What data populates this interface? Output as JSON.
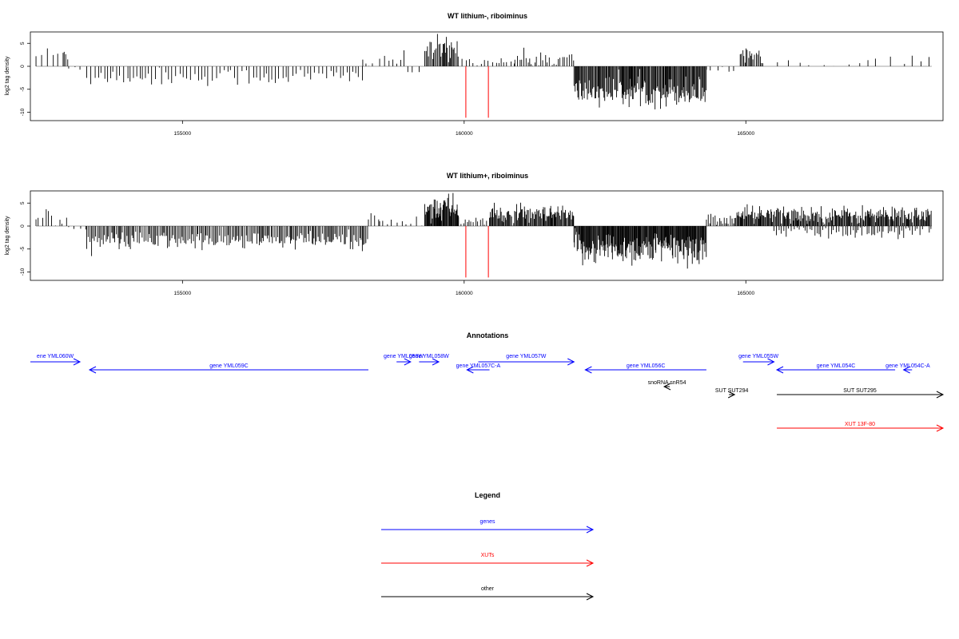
{
  "colors": {
    "gene": "#0000ff",
    "xut": "#ff0000",
    "other": "#000000",
    "axis": "#000000",
    "baseline": "#888888"
  },
  "chart_data": [
    {
      "type": "bar",
      "title": "WT lithium-, riboiminus",
      "ylabel": "log2 tag density",
      "xlim": [
        152300,
        168500
      ],
      "ylim": [
        -12,
        8
      ],
      "x_ticks": [
        155000,
        160000,
        165000
      ],
      "y_ticks": [
        5,
        0,
        -5,
        -10
      ],
      "markers": [
        160030,
        160430
      ],
      "segments": [
        {
          "from": 152400,
          "to": 152900,
          "mean": 2.5,
          "sd": 1.0,
          "step": 90,
          "sign": 1
        },
        {
          "from": 152900,
          "to": 152980,
          "mean": 2.8,
          "sd": 1.2,
          "step": 40,
          "sign": 1
        },
        {
          "from": 152980,
          "to": 153300,
          "mean": -0.3,
          "sd": 0.4,
          "step": 120,
          "sign": -1
        },
        {
          "from": 153300,
          "to": 158200,
          "mean": -2.3,
          "sd": 1.0,
          "step": 60,
          "sign": -1
        },
        {
          "from": 158200,
          "to": 158400,
          "mean": 1.0,
          "sd": 0.6,
          "step": 60,
          "sign": 1
        },
        {
          "from": 158500,
          "to": 158980,
          "mean": 1.6,
          "sd": 1.2,
          "step": 70,
          "sign": 1
        },
        {
          "from": 159000,
          "to": 159300,
          "mean": -0.8,
          "sd": 0.8,
          "step": 90,
          "sign": -1
        },
        {
          "from": 159300,
          "to": 159900,
          "mean": 3.5,
          "sd": 1.5,
          "step": 20,
          "sign": 1
        },
        {
          "from": 159900,
          "to": 160900,
          "mean": 0.8,
          "sd": 1.0,
          "step": 60,
          "sign": 1
        },
        {
          "from": 160900,
          "to": 161950,
          "mean": 1.5,
          "sd": 1.0,
          "step": 40,
          "sign": 1
        },
        {
          "from": 161950,
          "to": 164300,
          "mean": -5.5,
          "sd": 1.6,
          "step": 15,
          "sign": -1
        },
        {
          "from": 164300,
          "to": 164900,
          "mean": -0.6,
          "sd": 0.8,
          "step": 110,
          "sign": -1
        },
        {
          "from": 164900,
          "to": 165300,
          "mean": 2.6,
          "sd": 1.0,
          "step": 25,
          "sign": 1
        },
        {
          "from": 165300,
          "to": 168300,
          "mean": 0.9,
          "sd": 0.9,
          "step": 200,
          "sign": 1
        }
      ]
    },
    {
      "type": "bar",
      "title": "WT lithium+, riboiminus",
      "ylabel": "log2 tag density",
      "xlim": [
        152300,
        168500
      ],
      "ylim": [
        -12,
        8
      ],
      "x_ticks": [
        155000,
        160000,
        165000
      ],
      "y_ticks": [
        5,
        0,
        -5,
        -10
      ],
      "markers": [
        160030,
        160430
      ],
      "segments": [
        {
          "from": 152400,
          "to": 152980,
          "mean": 1.8,
          "sd": 0.9,
          "step": 60,
          "sign": 1
        },
        {
          "from": 152980,
          "to": 153300,
          "mean": -0.5,
          "sd": 0.5,
          "step": 90,
          "sign": -1
        },
        {
          "from": 153300,
          "to": 158300,
          "mean": -3.2,
          "sd": 1.0,
          "step": 25,
          "sign": -1
        },
        {
          "from": 158300,
          "to": 158500,
          "mean": 1.5,
          "sd": 1.0,
          "step": 60,
          "sign": 1
        },
        {
          "from": 158500,
          "to": 159300,
          "mean": 0.6,
          "sd": 0.8,
          "step": 80,
          "sign": 1
        },
        {
          "from": 159300,
          "to": 159900,
          "mean": 4.0,
          "sd": 1.6,
          "step": 12,
          "sign": 1
        },
        {
          "from": 159900,
          "to": 160450,
          "mean": 1.0,
          "sd": 0.9,
          "step": 40,
          "sign": 1
        },
        {
          "from": 160450,
          "to": 161950,
          "mean": 2.4,
          "sd": 1.0,
          "step": 15,
          "sign": 1
        },
        {
          "from": 161950,
          "to": 164300,
          "mean": -4.8,
          "sd": 1.8,
          "step": 12,
          "sign": -1
        },
        {
          "from": 164300,
          "to": 164800,
          "mean": 1.2,
          "sd": 1.0,
          "step": 30,
          "sign": 1
        },
        {
          "from": 164800,
          "to": 168300,
          "mean": 2.4,
          "sd": 1.0,
          "step": 15,
          "sign": 1
        },
        {
          "from": 165500,
          "to": 168300,
          "mean": -1.3,
          "sd": 0.8,
          "step": 40,
          "sign": -1
        }
      ]
    }
  ],
  "annotations": {
    "title": "Annotations",
    "xlim": [
      152300,
      168500
    ],
    "features": [
      {
        "label": "ene YML060W",
        "start": 152300,
        "end": 153180,
        "strand": "+",
        "kind": "gene",
        "row": 0
      },
      {
        "label": "gene YML059C",
        "start": 153350,
        "end": 158300,
        "strand": "-",
        "kind": "gene",
        "row": 1
      },
      {
        "label": "gene YML058W",
        "start": 158800,
        "end": 159050,
        "strand": "+",
        "kind": "gene",
        "row": 0
      },
      {
        "label": "gene YML058W",
        "start": 159200,
        "end": 159550,
        "strand": "+",
        "kind": "gene",
        "row": 0
      },
      {
        "label": "gene YML057W",
        "start": 160250,
        "end": 161950,
        "strand": "+",
        "kind": "gene",
        "row": 0
      },
      {
        "label": "gene YML057C-A",
        "start": 160050,
        "end": 160450,
        "strand": "-",
        "kind": "gene",
        "row": 1
      },
      {
        "label": "gene YML056C",
        "start": 162150,
        "end": 164300,
        "strand": "-",
        "kind": "gene",
        "row": 1
      },
      {
        "label": "snoRNA snR54",
        "start": 163550,
        "end": 163650,
        "strand": "-",
        "kind": "other",
        "row": 2
      },
      {
        "label": "SUT SUT294",
        "start": 164700,
        "end": 164800,
        "strand": "+",
        "kind": "other",
        "row": 3
      },
      {
        "label": "gene YML055W",
        "start": 164950,
        "end": 165500,
        "strand": "+",
        "kind": "gene",
        "row": 0
      },
      {
        "label": "gene YML054C",
        "start": 165550,
        "end": 167650,
        "strand": "-",
        "kind": "gene",
        "row": 1
      },
      {
        "label": "gene YML054C-A",
        "start": 167800,
        "end": 167950,
        "strand": "-",
        "kind": "gene",
        "row": 1
      },
      {
        "label": "SUT SUT295",
        "start": 165550,
        "end": 168500,
        "strand": "+",
        "kind": "other",
        "row": 3
      },
      {
        "label": "XUT 13F-80",
        "start": 165550,
        "end": 168500,
        "strand": "+",
        "kind": "xut",
        "row": 4
      }
    ]
  },
  "legend": {
    "title": "Legend",
    "items": [
      {
        "label": "genes",
        "kind": "gene"
      },
      {
        "label": "XUTs",
        "kind": "xut"
      },
      {
        "label": "other",
        "kind": "other"
      }
    ]
  }
}
